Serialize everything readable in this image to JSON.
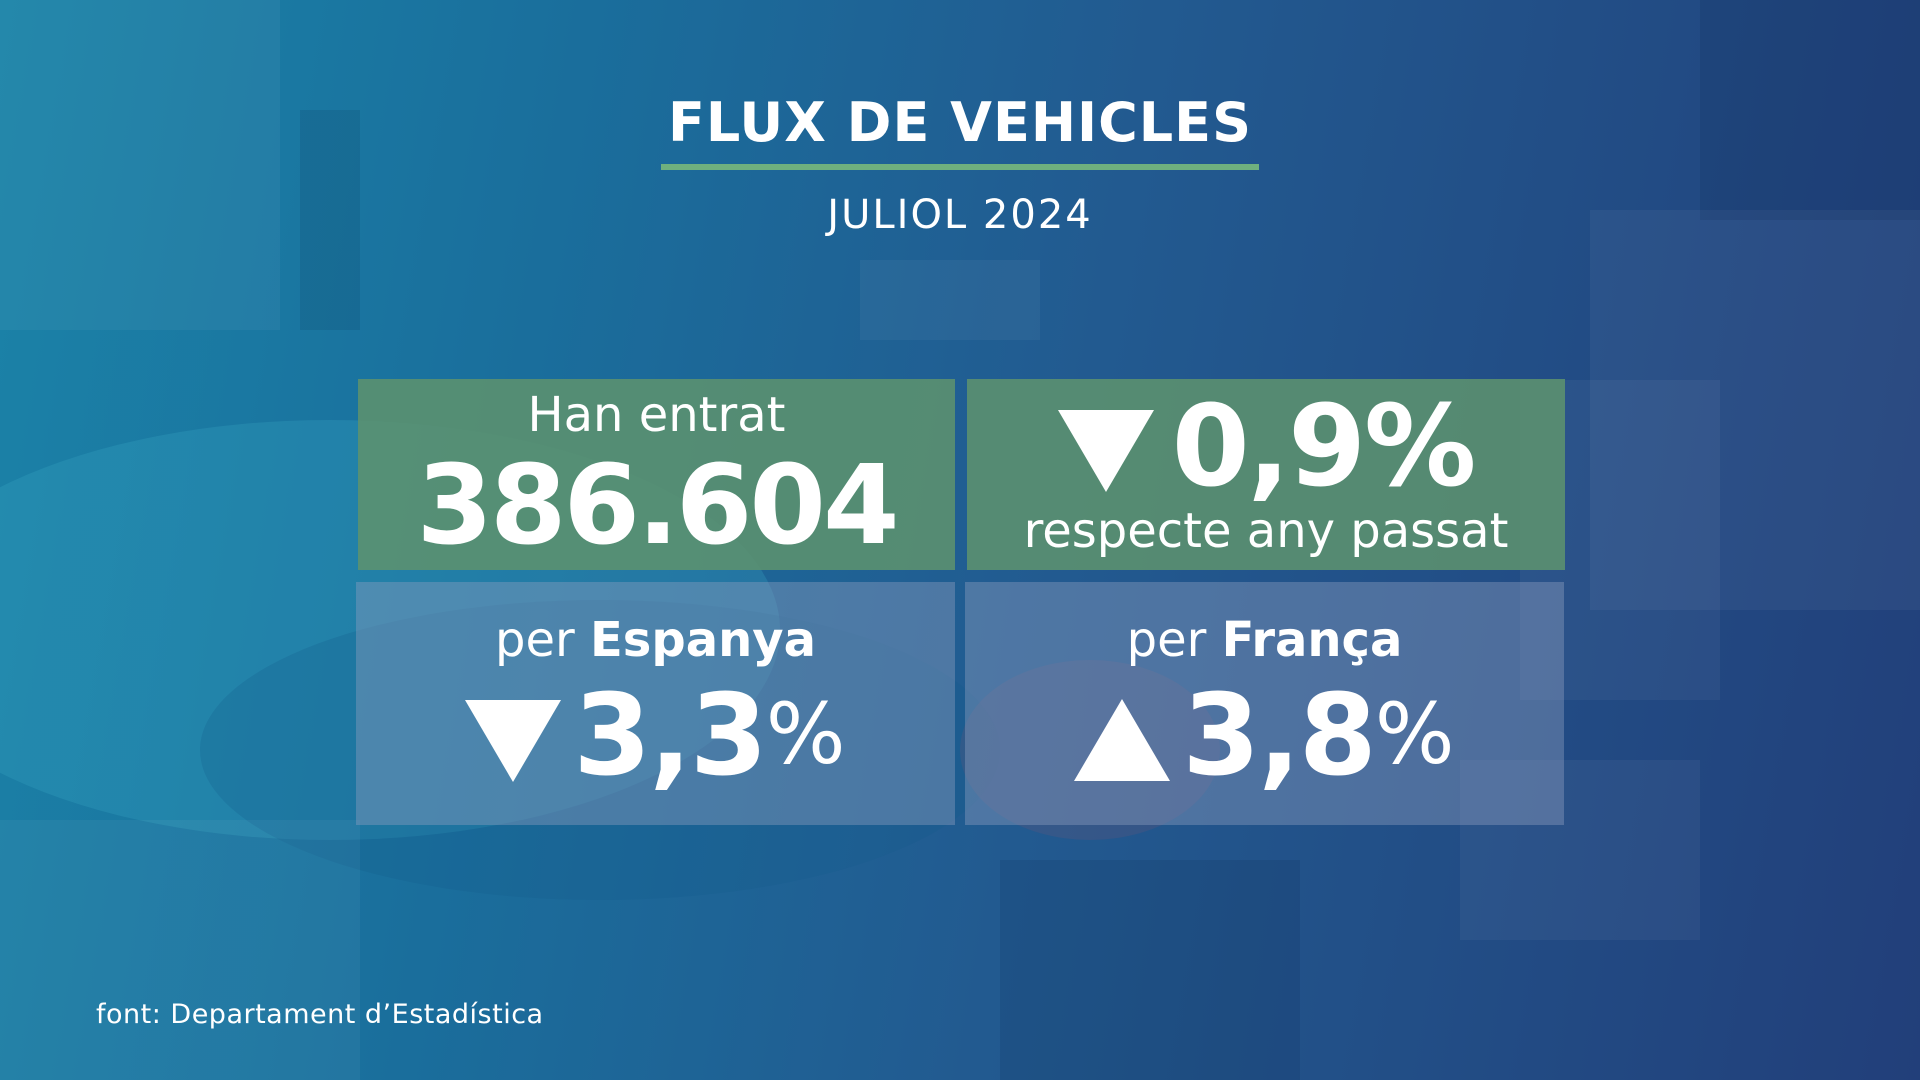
{
  "header": {
    "title": "FLUX DE VEHICLES",
    "subtitle": "JULIOL 2024"
  },
  "entered": {
    "label": "Han entrat",
    "value": "386.604"
  },
  "yearly_change": {
    "direction": "down",
    "value": "0,9%",
    "label": "respecte any passat"
  },
  "spain": {
    "prefix": "per",
    "country": "Espanya",
    "direction": "down",
    "value": "3,3",
    "unit": "%"
  },
  "france": {
    "prefix": "per",
    "country": "França",
    "direction": "up",
    "value": "3,8",
    "unit": "%"
  },
  "footer": {
    "source": "font: Departament d’Estadística"
  },
  "colors": {
    "accent_green": "#6fb07e",
    "panel_green": "#5c926e",
    "background": "#1f4f86"
  }
}
